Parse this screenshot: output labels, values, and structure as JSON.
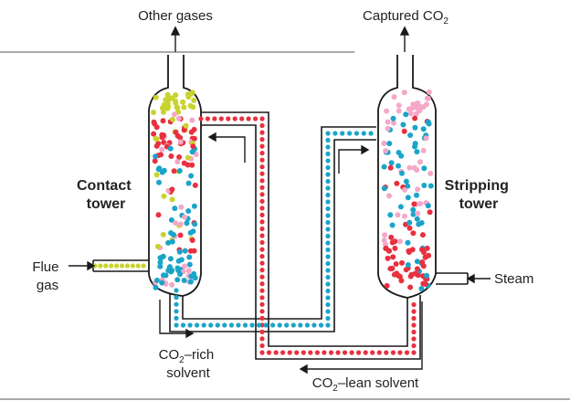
{
  "labels": {
    "other_gases": "Other gases",
    "captured_co2": {
      "text": "Captured CO",
      "sub": "2"
    },
    "contact_tower": [
      "Contact",
      "tower"
    ],
    "stripping_tower": [
      "Stripping",
      "tower"
    ],
    "flue_gas": [
      "Flue",
      "gas"
    ],
    "steam": "Steam",
    "co2_rich": {
      "pre": "CO",
      "sub": "2",
      "post": "–rich",
      "line2": "solvent"
    },
    "co2_lean": {
      "pre": "CO",
      "sub": "2",
      "post": "–lean solvent"
    }
  },
  "colors": {
    "outline": "#1a1a1a",
    "co2": "#e8303f",
    "solvent": "#1aa4c8",
    "flue_gas": "#c8d42e",
    "light_solvent": "#f4a8c8"
  }
}
